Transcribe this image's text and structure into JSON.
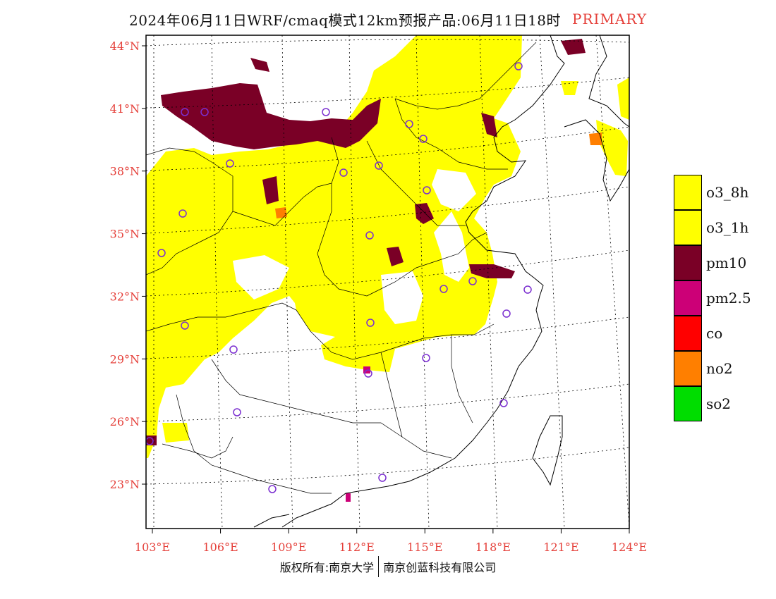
{
  "title": "2024年06月11日WRF/cmaq模式12km预报产品:06月11日18时",
  "title_tag": "PRIMARY",
  "colors": {
    "o3_8h": "#ffff00",
    "o3_1h": "#ffff00",
    "pm10": "#7a0026",
    "pm25": "#cc0077",
    "co": "#ff0000",
    "no2": "#ff7f00",
    "so2": "#00dd00",
    "axis_label": "#e5413b",
    "station": "#7b2fd0"
  },
  "legend": [
    {
      "label": "o3_8h",
      "color": "#ffff00"
    },
    {
      "label": "o3_1h",
      "color": "#ffff00"
    },
    {
      "label": "pm10",
      "color": "#7a0026"
    },
    {
      "label": "pm2.5",
      "color": "#cc0077"
    },
    {
      "label": "co",
      "color": "#ff0000"
    },
    {
      "label": "no2",
      "color": "#ff7f00"
    },
    {
      "label": "so2",
      "color": "#00dd00"
    }
  ],
  "lat_labels": [
    "44°N",
    "41°N",
    "38°N",
    "35°N",
    "32°N",
    "29°N",
    "26°N",
    "23°N"
  ],
  "lat_values": [
    44,
    41,
    38,
    35,
    32,
    29,
    26,
    23
  ],
  "lon_labels": [
    "103°E",
    "106°E",
    "109°E",
    "112°E",
    "115°E",
    "118°E",
    "121°E",
    "124°E"
  ],
  "lon_values": [
    103,
    106,
    109,
    112,
    115,
    118,
    121,
    124
  ],
  "copyright_left": "版权所有:南京大学",
  "copyright_right": "南京创蓝科技有限公司"
}
